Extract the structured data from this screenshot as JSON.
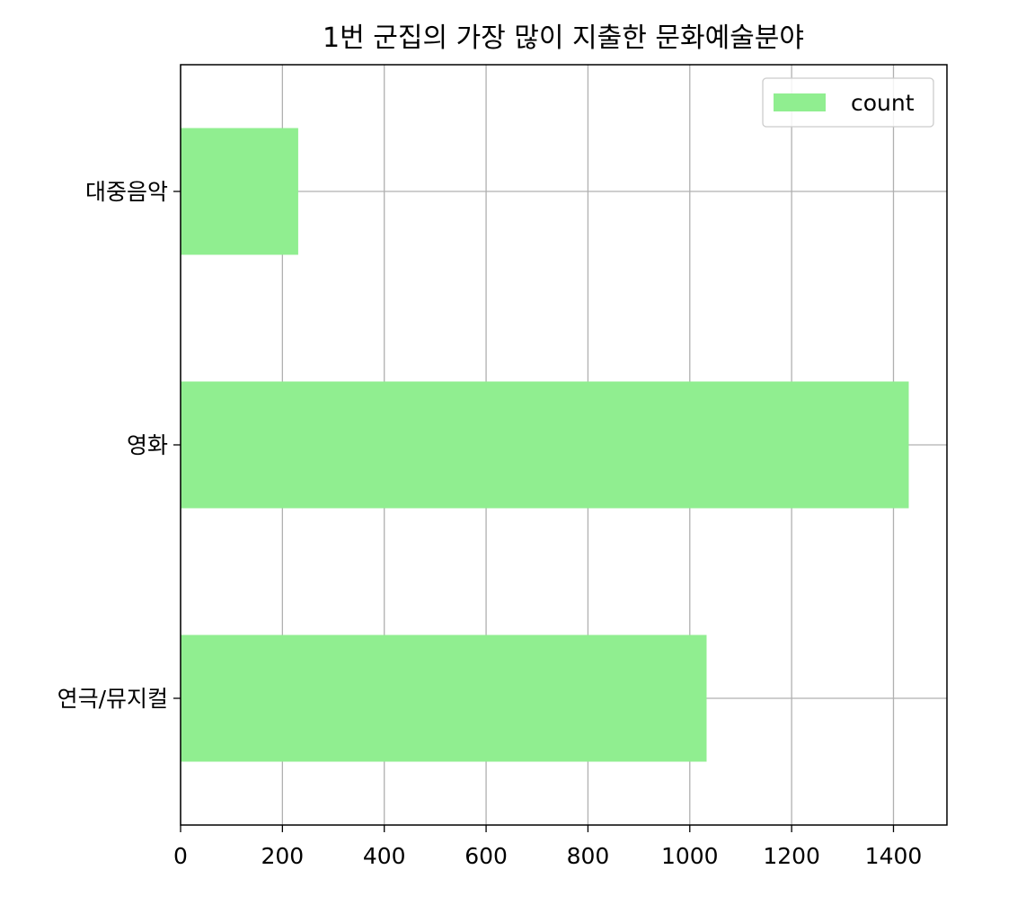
{
  "chart_data": {
    "type": "bar",
    "orientation": "horizontal",
    "title": "1번 군집의 가장 많이 지출한 문화예술분야",
    "xlabel": "",
    "ylabel": "",
    "categories": [
      "연극/뮤지컬",
      "영화",
      "대중음악"
    ],
    "series": [
      {
        "name": "count",
        "values": [
          1033,
          1430,
          231
        ],
        "color": "#90ee90"
      }
    ],
    "xlim": [
      0,
      1505
    ],
    "x_ticks": [
      0,
      200,
      400,
      600,
      800,
      1000,
      1200,
      1400
    ],
    "x_tick_labels": [
      "0",
      "200",
      "400",
      "600",
      "800",
      "1000",
      "1200",
      "1400"
    ],
    "grid": true,
    "legend_position": "top-right"
  }
}
